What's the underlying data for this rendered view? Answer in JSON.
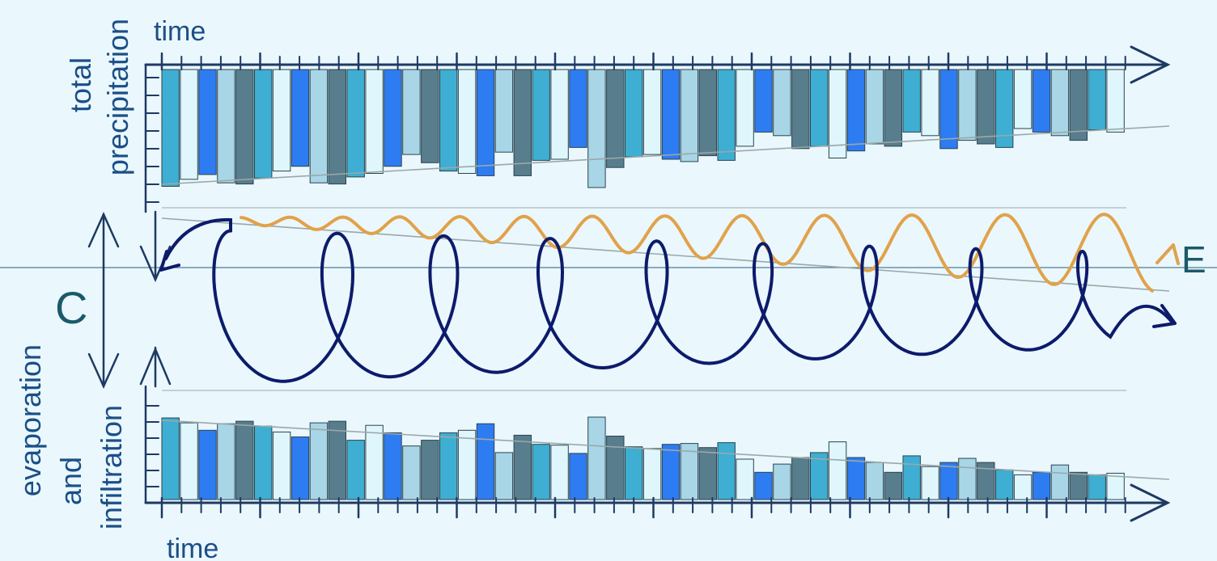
{
  "labels": {
    "top_axis_time": "time",
    "bottom_axis_time": "time",
    "top_ylabel": [
      "total",
      "precipitation"
    ],
    "bottom_ylabel": [
      "evaporation",
      "and",
      "infiltration"
    ],
    "capacity": "C",
    "energy": "E"
  },
  "colors": {
    "background": "#eaf7fd",
    "axis": "#1e3a63",
    "bar_palette": [
      "#3eaed2",
      "#dff6fc",
      "#2e7cf2",
      "#a8d6e6",
      "#587d8d"
    ],
    "wave": "#e0a24a",
    "spiral": "#0d1b6b",
    "trend": "#9aa8a8",
    "label": "#1b4f86",
    "accent_label": "#1a5a6a"
  },
  "chart_data": [
    {
      "type": "bar",
      "name": "total precipitation",
      "orientation": "downward",
      "trend": "decreasing",
      "values": [
        0.99,
        0.93,
        0.89,
        0.96,
        0.97,
        0.92,
        0.86,
        0.82,
        0.96,
        0.97,
        0.91,
        0.88,
        0.82,
        0.72,
        0.79,
        0.86,
        0.88,
        0.9,
        0.7,
        0.9,
        0.77,
        0.76,
        0.66,
        1.0,
        0.83,
        0.74,
        0.72,
        0.76,
        0.78,
        0.73,
        0.77,
        0.65,
        0.53,
        0.56,
        0.67,
        0.65,
        0.75,
        0.69,
        0.63,
        0.65,
        0.53,
        0.56,
        0.67,
        0.6,
        0.63,
        0.66,
        0.5,
        0.53,
        0.56,
        0.6,
        0.51,
        0.53
      ]
    },
    {
      "type": "bar",
      "name": "evaporation and infiltration",
      "orientation": "upward",
      "trend": "decreasing",
      "values": [
        0.99,
        0.93,
        0.84,
        0.92,
        0.95,
        0.89,
        0.82,
        0.76,
        0.93,
        0.95,
        0.72,
        0.9,
        0.81,
        0.65,
        0.72,
        0.81,
        0.84,
        0.92,
        0.57,
        0.78,
        0.67,
        0.66,
        0.56,
        1.0,
        0.77,
        0.64,
        0.62,
        0.67,
        0.68,
        0.63,
        0.69,
        0.49,
        0.33,
        0.43,
        0.51,
        0.57,
        0.7,
        0.51,
        0.45,
        0.33,
        0.53,
        0.4,
        0.45,
        0.5,
        0.45,
        0.36,
        0.3,
        0.33,
        0.42,
        0.33,
        0.3,
        0.32
      ]
    }
  ]
}
